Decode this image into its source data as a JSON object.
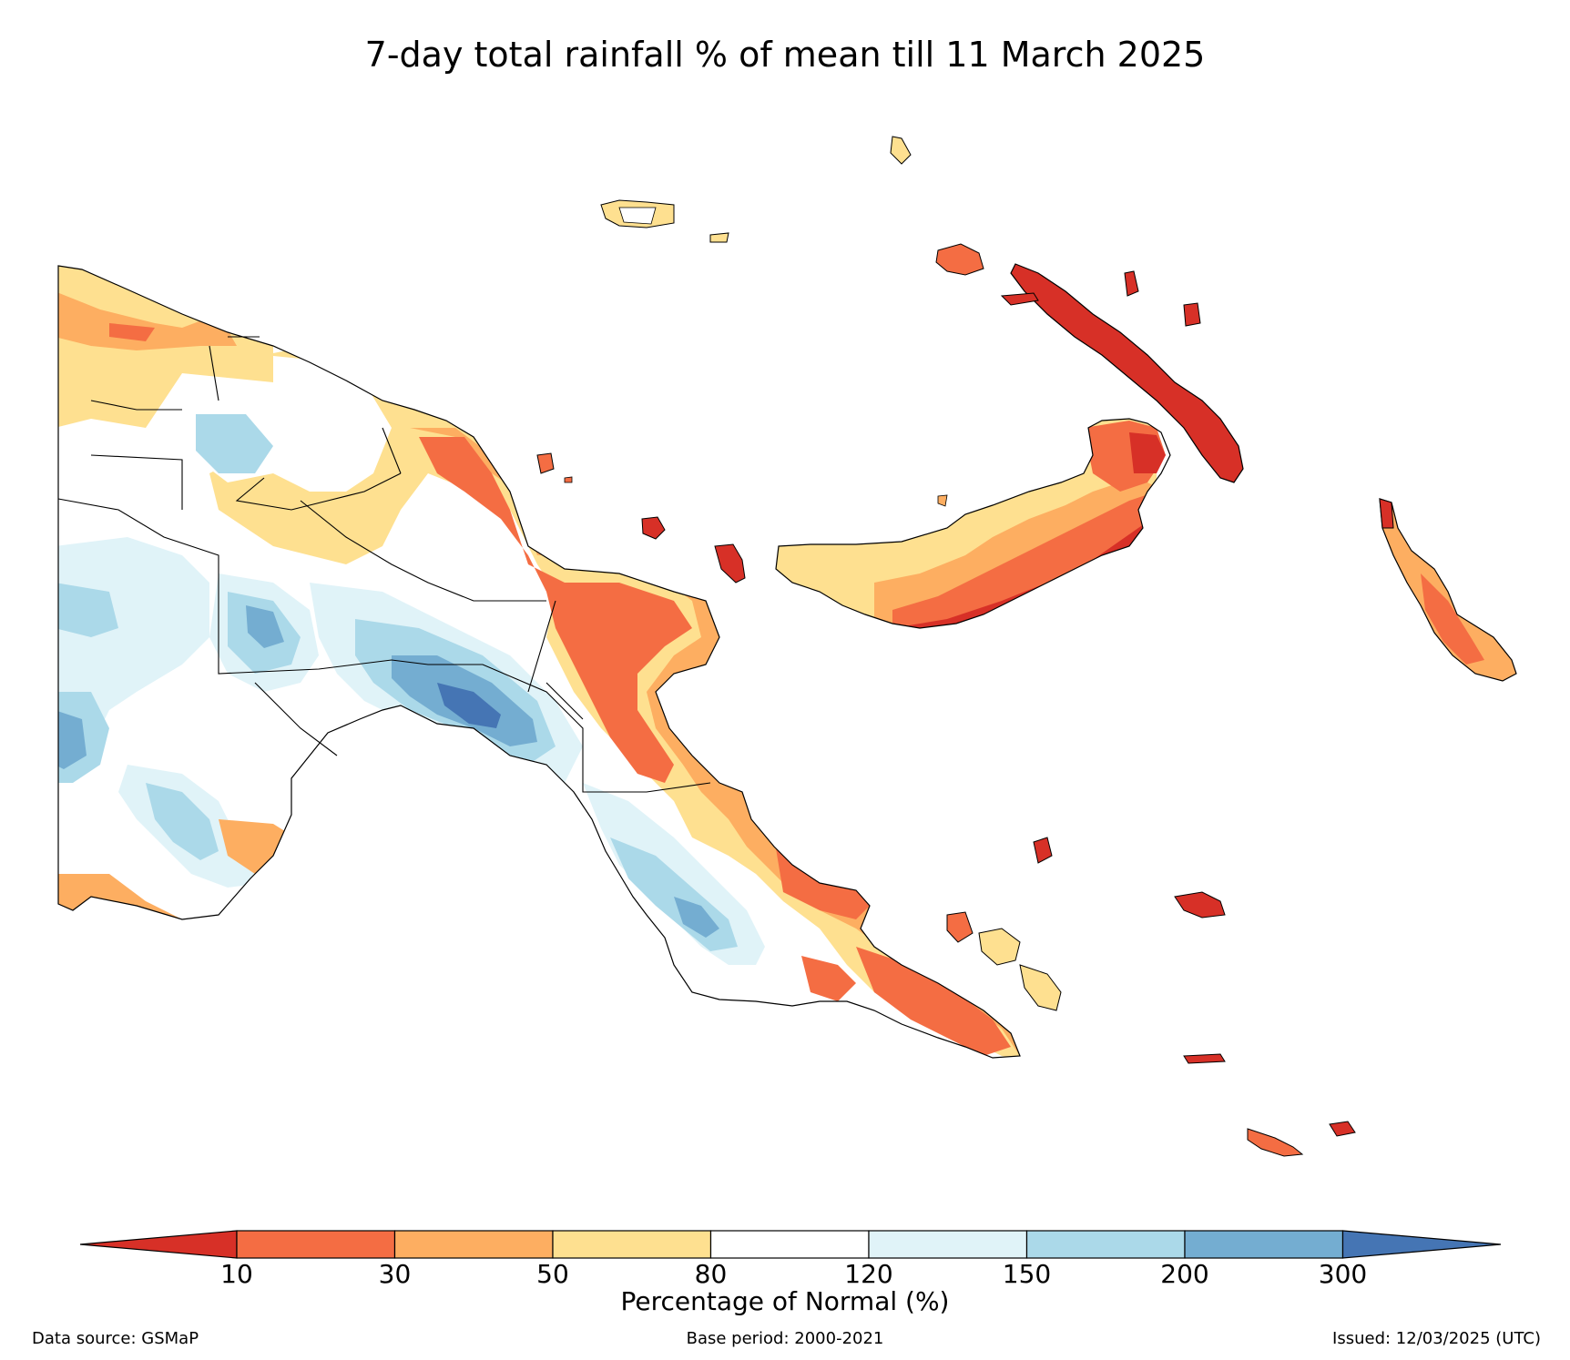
{
  "title": "7-day total rainfall % of mean till 11 March 2025",
  "colorbar": {
    "label": "Percentage of Normal (%)",
    "ticks": [
      "10",
      "30",
      "50",
      "80",
      "120",
      "150",
      "200",
      "300"
    ],
    "colors": {
      "below_10": "#d73027",
      "10_30": "#f46d43",
      "30_50": "#fdae61",
      "50_80": "#fee090",
      "80_120": "#ffffff",
      "120_150": "#e0f3f8",
      "150_200": "#abd9e9",
      "200_300": "#74add1",
      "above_300": "#4575b4"
    }
  },
  "footer": {
    "source": "Data source: GSMaP",
    "base_period": "Base period: 2000-2021",
    "issued": "Issued: 12/03/2025 (UTC)"
  }
}
